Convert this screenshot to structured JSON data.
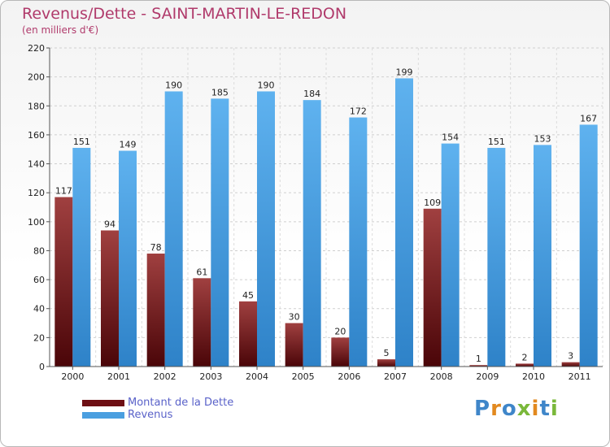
{
  "header": {
    "title": "Revenus/Dette - SAINT-MARTIN-LE-REDON",
    "subtitle": "(en milliers d'€)"
  },
  "legend": {
    "items": [
      {
        "label": "Montant de la Dette",
        "color": "#6e0f14"
      },
      {
        "label": "Revenus",
        "color": "#4a9fe0"
      }
    ]
  },
  "logo": {
    "text": "Proxiti",
    "letter_colors": [
      "#3f86c9",
      "#e2891f",
      "#3f86c9",
      "#7ab83a",
      "#e2891f",
      "#3f86c9",
      "#7ab83a"
    ]
  },
  "chart_data": {
    "type": "bar",
    "title": "Revenus/Dette - SAINT-MARTIN-LE-REDON",
    "subtitle": "(en milliers d'€)",
    "categories": [
      "2000",
      "2001",
      "2002",
      "2003",
      "2004",
      "2005",
      "2006",
      "2007",
      "2008",
      "2009",
      "2010",
      "2011"
    ],
    "series": [
      {
        "name": "Montant de la Dette",
        "color": "#6e0f14",
        "values": [
          117,
          94,
          78,
          61,
          45,
          30,
          20,
          5,
          109,
          1,
          2,
          3
        ]
      },
      {
        "name": "Revenus",
        "color": "#4a9fe0",
        "values": [
          151,
          149,
          190,
          185,
          190,
          184,
          172,
          199,
          154,
          151,
          153,
          167
        ]
      }
    ],
    "ylim": [
      0,
      220
    ],
    "yticks": [
      0,
      20,
      40,
      60,
      80,
      100,
      120,
      140,
      160,
      180,
      200,
      220
    ],
    "grid": true,
    "legend_position": "bottom-left"
  }
}
